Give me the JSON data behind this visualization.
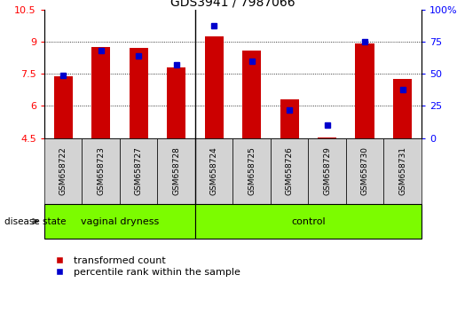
{
  "title": "GDS3941 / 7987066",
  "samples": [
    "GSM658722",
    "GSM658723",
    "GSM658727",
    "GSM658728",
    "GSM658724",
    "GSM658725",
    "GSM658726",
    "GSM658729",
    "GSM658730",
    "GSM658731"
  ],
  "transformed_counts": [
    7.4,
    8.75,
    8.7,
    7.8,
    9.25,
    8.6,
    6.3,
    4.55,
    8.9,
    7.25
  ],
  "percentile_ranks": [
    49,
    68,
    64,
    57,
    87,
    60,
    22,
    10,
    75,
    38
  ],
  "groups": [
    "vaginal dryness",
    "vaginal dryness",
    "vaginal dryness",
    "vaginal dryness",
    "control",
    "control",
    "control",
    "control",
    "control",
    "control"
  ],
  "ylim_left": [
    4.5,
    10.5
  ],
  "ylim_right": [
    0,
    100
  ],
  "yticks_left": [
    4.5,
    6.0,
    7.5,
    9.0,
    10.5
  ],
  "yticks_right": [
    0,
    25,
    50,
    75,
    100
  ],
  "ytick_labels_left": [
    "4.5",
    "6",
    "7.5",
    "9",
    "10.5"
  ],
  "ytick_labels_right": [
    "0",
    "25",
    "50",
    "75",
    "100%"
  ],
  "bar_color": "#CC0000",
  "dot_color": "#0000CC",
  "bar_width": 0.5,
  "grid_color": "black",
  "cell_color": "#d3d3d3",
  "group_color": "#7CFC00",
  "legend_bar_label": "transformed count",
  "legend_dot_label": "percentile rank within the sample",
  "disease_state_label": "disease state",
  "group_label_vaginal": "vaginal dryness",
  "group_label_control": "control",
  "n_vaginal": 4,
  "n_control": 6
}
